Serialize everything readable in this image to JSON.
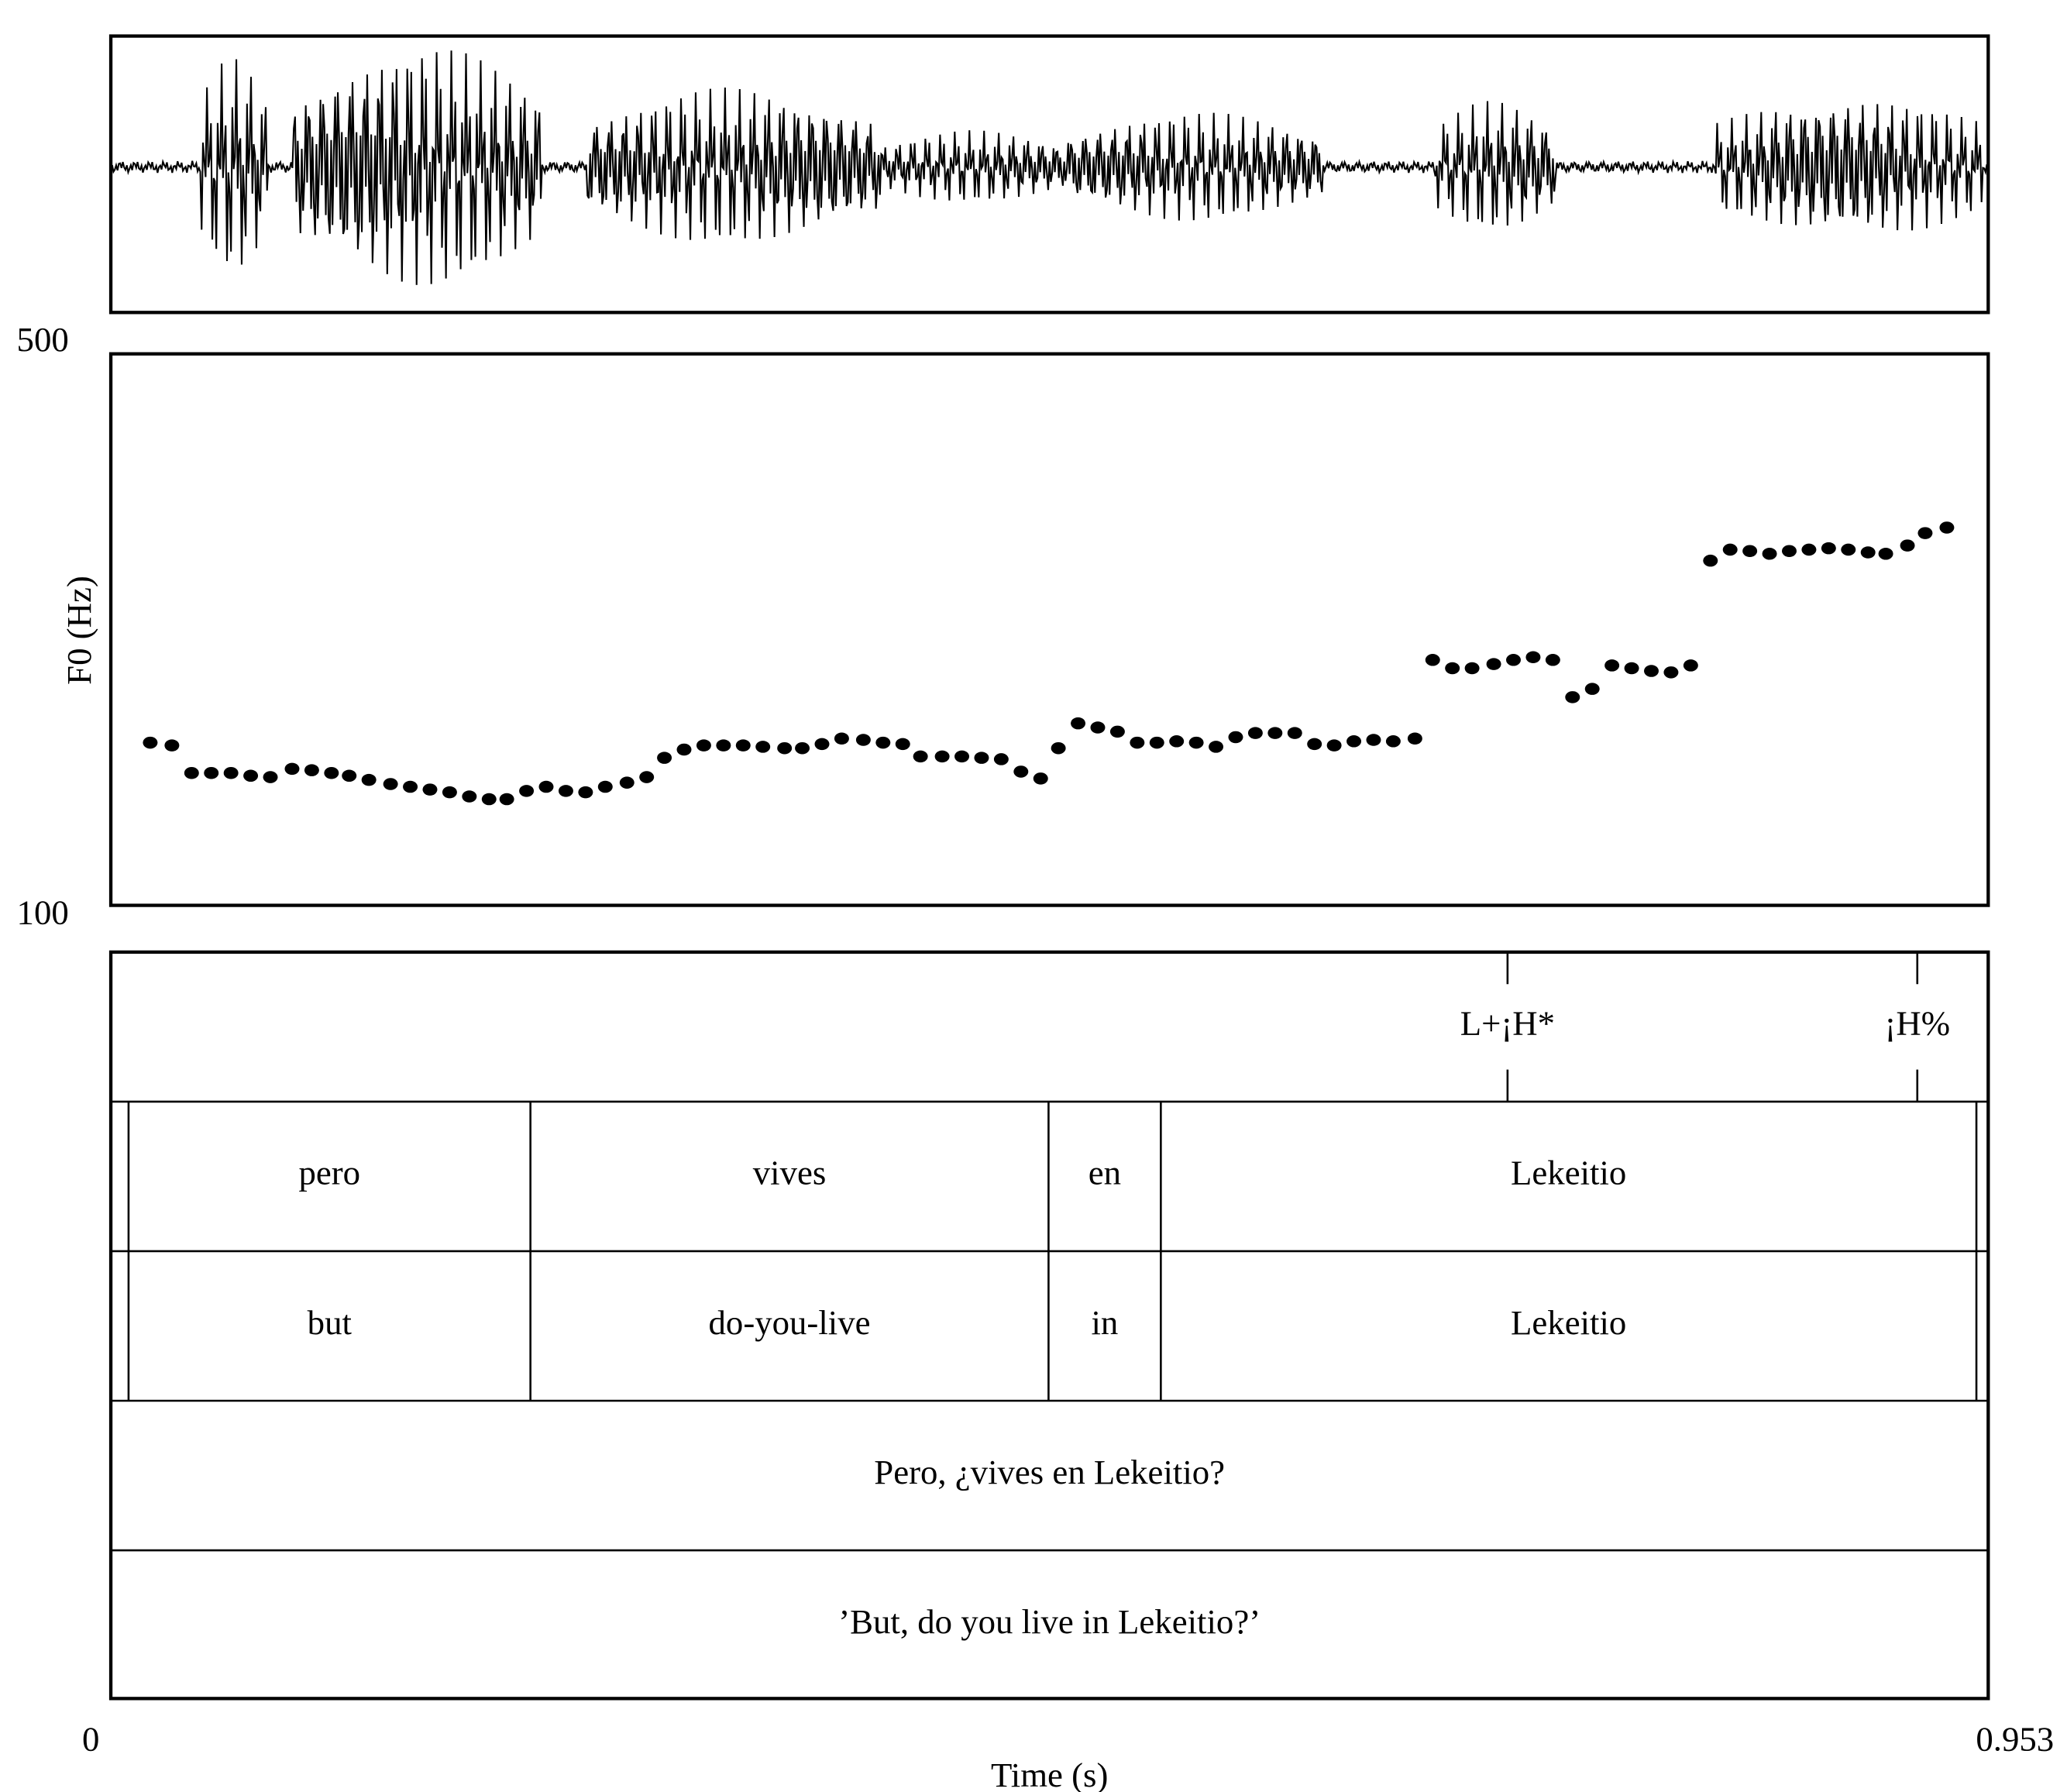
{
  "chart_data": {
    "type": "scatter",
    "xlabel": "Time (s)",
    "ylabel": "F0 (Hz)",
    "xlim": [
      0,
      0.953
    ],
    "ylim": [
      100,
      500
    ],
    "xticks": [
      0,
      0.953
    ],
    "yticks": [
      100,
      500
    ],
    "color": "#000000",
    "x": [
      0.02,
      0.031,
      0.041,
      0.051,
      0.061,
      0.071,
      0.081,
      0.092,
      0.102,
      0.112,
      0.121,
      0.131,
      0.142,
      0.152,
      0.162,
      0.172,
      0.182,
      0.192,
      0.201,
      0.211,
      0.221,
      0.231,
      0.241,
      0.251,
      0.262,
      0.272,
      0.281,
      0.291,
      0.301,
      0.311,
      0.321,
      0.331,
      0.342,
      0.351,
      0.361,
      0.371,
      0.382,
      0.392,
      0.402,
      0.411,
      0.422,
      0.432,
      0.442,
      0.452,
      0.462,
      0.472,
      0.481,
      0.491,
      0.501,
      0.511,
      0.521,
      0.531,
      0.541,
      0.551,
      0.561,
      0.571,
      0.581,
      0.591,
      0.601,
      0.611,
      0.621,
      0.631,
      0.641,
      0.651,
      0.662,
      0.671,
      0.681,
      0.691,
      0.702,
      0.712,
      0.722,
      0.732,
      0.742,
      0.752,
      0.762,
      0.772,
      0.782,
      0.792,
      0.802,
      0.812,
      0.822,
      0.832,
      0.842,
      0.852,
      0.862,
      0.872,
      0.882,
      0.892,
      0.901,
      0.912,
      0.921,
      0.932
    ],
    "values": [
      218,
      216,
      196,
      196,
      196,
      194,
      193,
      199,
      198,
      196,
      194,
      191,
      188,
      186,
      184,
      182,
      179,
      177,
      177,
      183,
      186,
      183,
      182,
      186,
      189,
      193,
      207,
      213,
      216,
      216,
      216,
      215,
      214,
      214,
      217,
      221,
      220,
      218,
      217,
      208,
      208,
      208,
      207,
      206,
      197,
      192,
      214,
      232,
      229,
      226,
      218,
      218,
      219,
      218,
      215,
      222,
      225,
      225,
      225,
      217,
      216,
      219,
      220,
      219,
      221,
      278,
      272,
      272,
      275,
      278,
      280,
      278,
      251,
      257,
      274,
      272,
      270,
      269,
      274,
      350,
      358,
      357,
      355,
      357,
      358,
      359,
      358,
      356,
      355,
      361,
      370,
      374
    ],
    "tiers": [
      {
        "points": [
          0.709,
          0.917
        ],
        "labels": [
          "L+¡H*",
          "¡H%"
        ]
      },
      {
        "boundaries": [
          0.009,
          0.213,
          0.476,
          0.533,
          0.947
        ],
        "labels": [
          "pero",
          "vives",
          "en",
          "Lekeitio"
        ]
      },
      {
        "boundaries": [
          0.009,
          0.213,
          0.476,
          0.533,
          0.947
        ],
        "labels": [
          "but",
          "do-you-live",
          "in",
          "Lekeitio"
        ]
      },
      {
        "labels": [
          "Pero, ¿vives en Lekeitio?"
        ]
      },
      {
        "labels": [
          "’But, do you live in Lekeitio?’"
        ]
      }
    ]
  }
}
